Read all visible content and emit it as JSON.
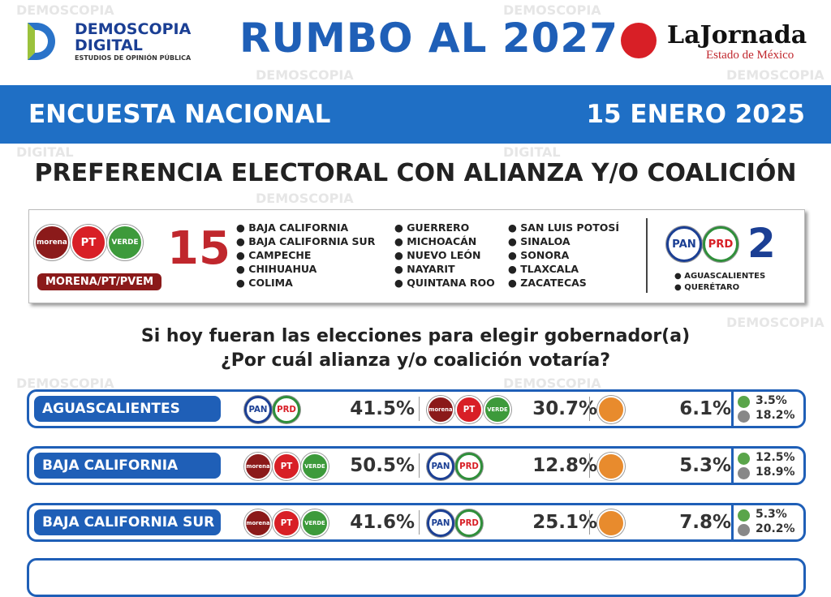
{
  "header": {
    "brand_line1": "DEMOSCOPIA",
    "brand_line2": "DIGITAL",
    "brand_tagline": "ESTUDIOS DE OPINIÓN PÚBLICA",
    "title": "RUMBO AL 2027",
    "paper_name": "LaJornada",
    "paper_region": "Estado de México"
  },
  "banner": {
    "left": "ENCUESTA NACIONAL",
    "right": "15 ENERO 2025"
  },
  "heading": "PREFERENCIA ELECTORAL CON ALIANZA Y/O COALICIÓN",
  "parties": {
    "morena": "morena",
    "pt": "PT",
    "verde": "VERDE",
    "pan": "PAN",
    "prd": "PRD"
  },
  "summary": {
    "coalition_label": "MORENA/PT/PVEM",
    "coalition_count": "15",
    "coalition_states": [
      "BAJA CALIFORNIA",
      "BAJA CALIFORNIA SUR",
      "CAMPECHE",
      "CHIHUAHUA",
      "COLIMA",
      "GUERRERO",
      "MICHOACÁN",
      "NUEVO LEÓN",
      "NAYARIT",
      "QUINTANA ROO",
      "SAN LUIS POTOSÍ",
      "SINALOA",
      "SONORA",
      "TLAXCALA",
      "ZACATECAS"
    ],
    "other_count": "2",
    "other_states": [
      "AGUASCALIENTES",
      "QUERÉTARO"
    ]
  },
  "question": [
    "Si hoy fueran las elecciones para elegir gobernador(a)",
    "¿Por cuál alianza y/o coalición votaría?"
  ],
  "rows": [
    {
      "state": "AGUASCALIENTES",
      "cols": [
        {
          "parties": [
            "pan",
            "prd"
          ],
          "pct": "41.5%"
        },
        {
          "parties": [
            "morena",
            "pt",
            "verde"
          ],
          "pct": "30.7%"
        },
        {
          "parties": [
            "mc"
          ],
          "pct": "6.1%"
        }
      ],
      "other": "3.5%",
      "undecided": "18.2%"
    },
    {
      "state": "BAJA CALIFORNIA",
      "cols": [
        {
          "parties": [
            "morena",
            "pt",
            "verde"
          ],
          "pct": "50.5%"
        },
        {
          "parties": [
            "pan",
            "prd"
          ],
          "pct": "12.8%"
        },
        {
          "parties": [
            "mc"
          ],
          "pct": "5.3%"
        }
      ],
      "other": "12.5%",
      "undecided": "18.9%"
    },
    {
      "state": "BAJA CALIFORNIA SUR",
      "cols": [
        {
          "parties": [
            "morena",
            "pt",
            "verde"
          ],
          "pct": "41.6%"
        },
        {
          "parties": [
            "pan",
            "prd"
          ],
          "pct": "25.1%"
        },
        {
          "parties": [
            "mc"
          ],
          "pct": "7.8%"
        }
      ],
      "other": "5.3%",
      "undecided": "20.2%"
    }
  ]
}
